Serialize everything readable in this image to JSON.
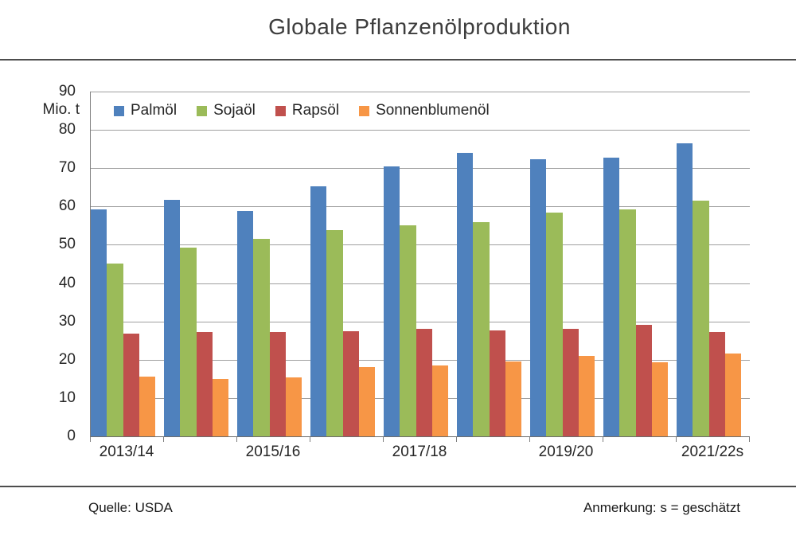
{
  "footer": {
    "source": "Quelle: USDA",
    "note": "Anmerkung: s = geschätzt"
  },
  "chart_data": {
    "type": "bar",
    "title": "Globale Pflanzenölproduktion",
    "unit_label": "Mio. t",
    "ylim": [
      0,
      90
    ],
    "ytick_step": 10,
    "grid": true,
    "legend_position": "top-left-inside",
    "n_groups": 9,
    "x_tick_labels": [
      "2013/14",
      "2015/16",
      "2017/18",
      "2019/20",
      "2021/22s"
    ],
    "labeled_group_indices": [
      0,
      2,
      4,
      6,
      8
    ],
    "axis_color": "#7f7f7f",
    "gridline_color": "#a0a0a0",
    "series": [
      {
        "name": "Palmöl",
        "color": "#4F81BD",
        "values": [
          59.3,
          61.8,
          58.9,
          65.2,
          70.5,
          74.1,
          72.3,
          72.7,
          76.5
        ]
      },
      {
        "name": "Sojaöl",
        "color": "#9BBB59",
        "values": [
          45.2,
          49.3,
          51.5,
          53.8,
          55.1,
          55.9,
          58.4,
          59.2,
          61.6
        ]
      },
      {
        "name": "Rapsöl",
        "color": "#C0504D",
        "values": [
          26.9,
          27.3,
          27.2,
          27.4,
          28.0,
          27.7,
          28.0,
          29.1,
          27.3
        ]
      },
      {
        "name": "Sonnenblumenöl",
        "color": "#F79646",
        "values": [
          15.5,
          14.9,
          15.3,
          18.1,
          18.6,
          19.5,
          21.0,
          19.3,
          21.6
        ]
      }
    ]
  }
}
